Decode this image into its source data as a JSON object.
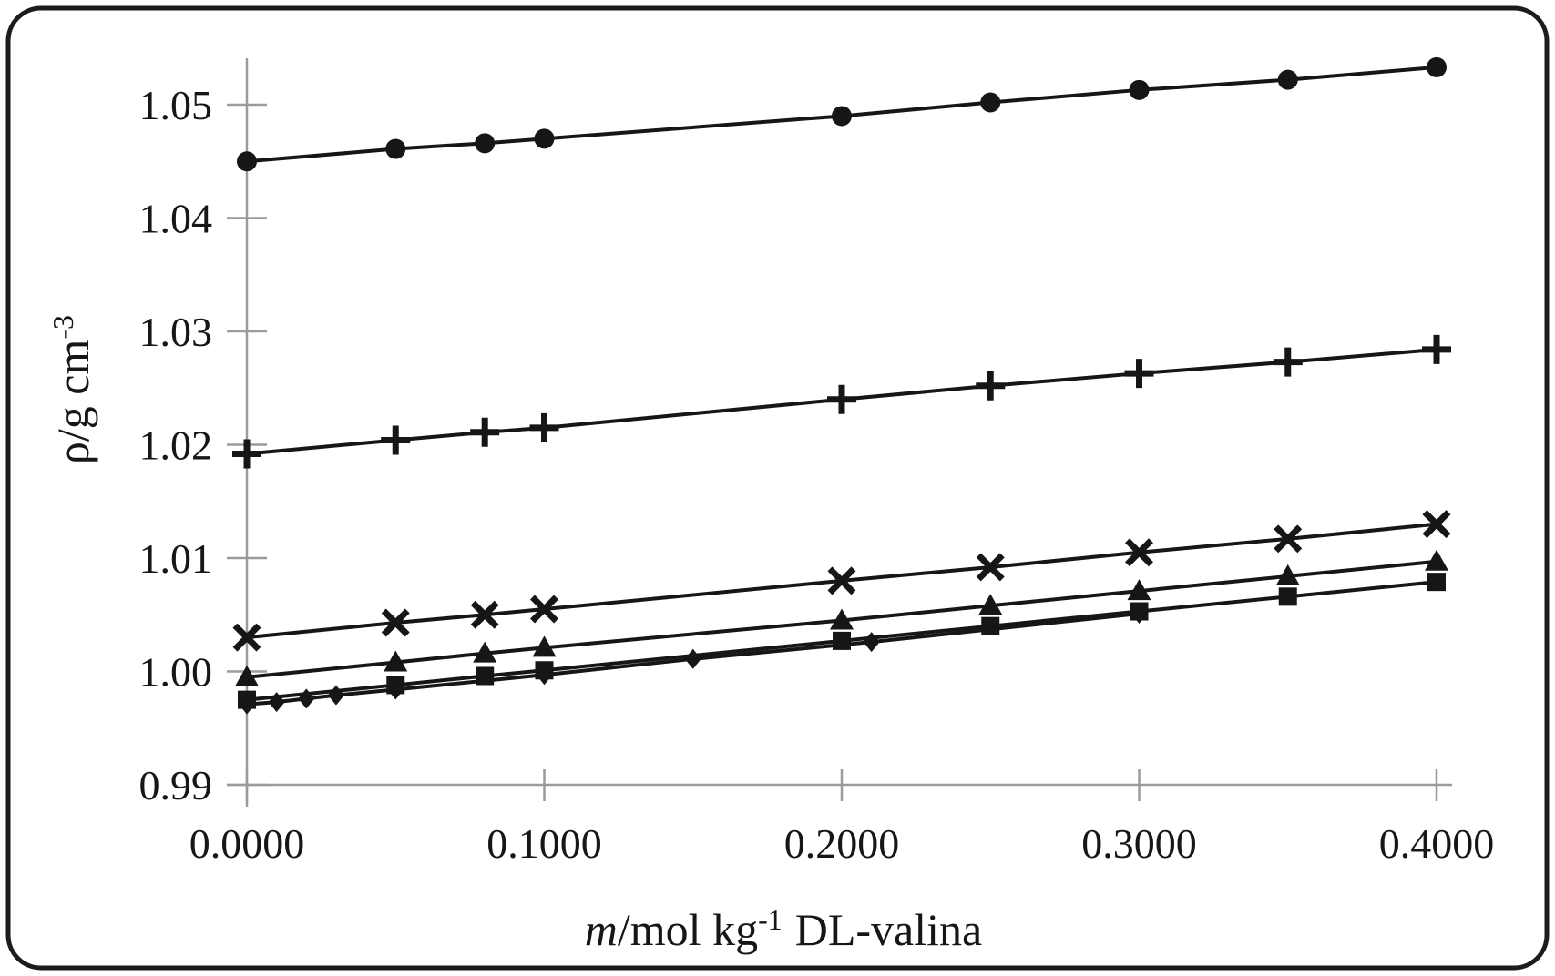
{
  "figure": {
    "background": "#ffffff",
    "border_color": "#1c1c1c",
    "axis_color": "#9b9b9b",
    "ink": "#161616"
  },
  "chart_data": {
    "type": "line",
    "markers": true,
    "title": "",
    "xlabel": {
      "variable": "m",
      "unit": "/mol kg",
      "sup": "-1",
      "suffix": "DL-valina",
      "full": "m/mol kg⁻¹ DL-valina"
    },
    "ylabel": {
      "main": "ρ/g cm",
      "sup": "-3",
      "full": "ρ/g cm⁻³"
    },
    "xlim": [
      0,
      0.405
    ],
    "ylim": [
      0.99,
      1.0545
    ],
    "grid": false,
    "legend": "none",
    "x_ticks": [
      {
        "value": 0.0,
        "label": "0.0000"
      },
      {
        "value": 0.1,
        "label": "0.1000"
      },
      {
        "value": 0.2,
        "label": "0.2000"
      },
      {
        "value": 0.3,
        "label": "0.3000"
      },
      {
        "value": 0.4,
        "label": "0.4000"
      }
    ],
    "y_ticks": [
      {
        "value": 0.99,
        "label": "0.99"
      },
      {
        "value": 1.0,
        "label": "1.00"
      },
      {
        "value": 1.01,
        "label": "1.01"
      },
      {
        "value": 1.02,
        "label": "1.02"
      },
      {
        "value": 1.03,
        "label": "1.03"
      },
      {
        "value": 1.04,
        "label": "1.04"
      },
      {
        "value": 1.05,
        "label": "1.05"
      }
    ],
    "series": [
      {
        "name": "series-filled-circle",
        "marker": "circle",
        "x": [
          0.0,
          0.05,
          0.08,
          0.1,
          0.2,
          0.25,
          0.3,
          0.35,
          0.4
        ],
        "y": [
          1.045,
          1.0461,
          1.0466,
          1.047,
          1.049,
          1.0502,
          1.0513,
          1.0522,
          1.0533
        ]
      },
      {
        "name": "series-plus",
        "marker": "plus",
        "x": [
          0.0,
          0.05,
          0.08,
          0.1,
          0.2,
          0.25,
          0.3,
          0.35,
          0.4
        ],
        "y": [
          1.0192,
          1.0204,
          1.0211,
          1.0215,
          1.024,
          1.0252,
          1.0263,
          1.0273,
          1.0284
        ]
      },
      {
        "name": "series-cross",
        "marker": "cross",
        "x": [
          0.0,
          0.05,
          0.08,
          0.1,
          0.2,
          0.25,
          0.3,
          0.35,
          0.4
        ],
        "y": [
          1.003,
          1.0043,
          1.005,
          1.0055,
          1.008,
          1.0092,
          1.0105,
          1.0117,
          1.013
        ]
      },
      {
        "name": "series-triangle",
        "marker": "triangle",
        "x": [
          0.0,
          0.05,
          0.08,
          0.1,
          0.2,
          0.25,
          0.3,
          0.35,
          0.4
        ],
        "y": [
          0.9995,
          1.0008,
          1.0016,
          1.0021,
          1.0045,
          1.0058,
          1.0071,
          1.0084,
          1.0097
        ]
      },
      {
        "name": "series-square",
        "marker": "square",
        "x": [
          0.0,
          0.05,
          0.08,
          0.1,
          0.2,
          0.25,
          0.3,
          0.35,
          0.4
        ],
        "y": [
          0.9975,
          0.9988,
          0.9996,
          1.0001,
          1.0027,
          1.004,
          1.0053,
          1.0066,
          1.0079
        ]
      },
      {
        "name": "series-diamond",
        "marker": "diamond",
        "x": [
          0.0,
          0.01,
          0.02,
          0.03,
          0.05,
          0.1,
          0.15,
          0.21,
          0.3
        ],
        "y": [
          0.9971,
          0.9973,
          0.9976,
          0.9979,
          0.9984,
          0.9997,
          1.0011,
          1.0026,
          1.0051
        ]
      }
    ]
  }
}
